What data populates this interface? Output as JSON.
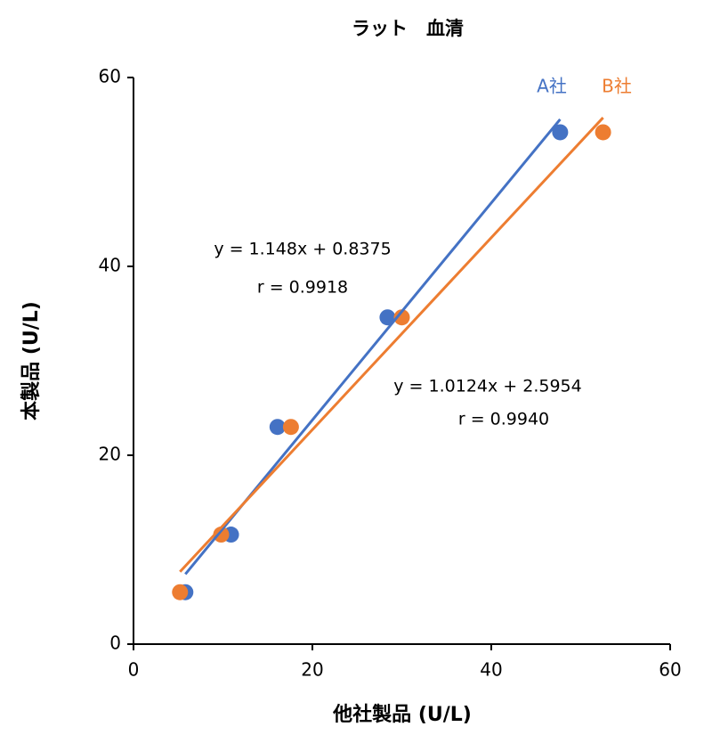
{
  "chart_data": {
    "type": "scatter",
    "title": "ラット　血清",
    "x_label": "他社製品 (U/L)",
    "y_label": "本製品 (U/L)",
    "xlim": [
      0,
      60
    ],
    "xticks": [
      0,
      20,
      40,
      60
    ],
    "ylim": [
      0,
      60
    ],
    "yticks": [
      0,
      20,
      40,
      60
    ],
    "grid": false,
    "trendline": true,
    "series": [
      {
        "name": "A社",
        "color": "#4472c4",
        "x": [
          5.8,
          10.9,
          16.1,
          28.4,
          47.7
        ],
        "values": [
          5.5,
          11.6,
          23.0,
          34.6,
          54.2
        ]
      },
      {
        "name": "B社",
        "color": "#ed7d31",
        "x": [
          5.2,
          9.8,
          17.6,
          30.0,
          52.5
        ],
        "values": [
          5.5,
          11.6,
          23.0,
          34.6,
          54.2
        ]
      }
    ],
    "annotations": [
      "y = 1.148x + 0.8375",
      "r = 0.9918",
      "y = 1.0124x + 2.5954",
      "r = 0.9940"
    ]
  }
}
